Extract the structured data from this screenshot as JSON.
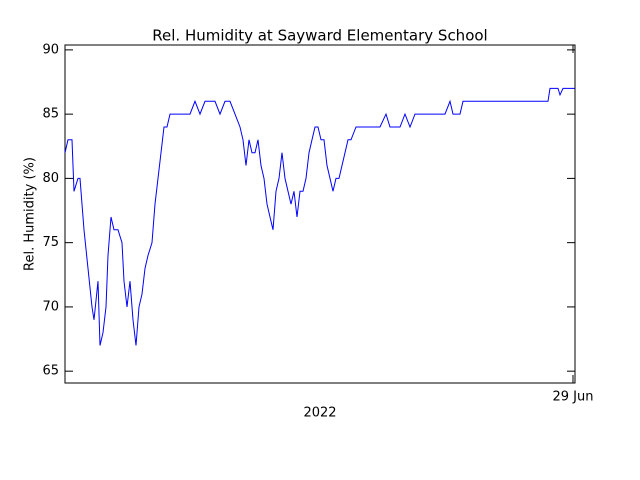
{
  "chart_data": {
    "type": "line",
    "title": "Rel. Humidity at Sayward Elementary School",
    "ylabel": "Rel. Humidity (%)",
    "xlabel": "2022",
    "color": "#0000ff",
    "xlim": [
      0,
      510
    ],
    "xticks": [
      {
        "value": 508,
        "label": "29 Jun"
      }
    ],
    "ylim": [
      64.08,
      90.38
    ],
    "yticks": [
      65,
      70,
      75,
      80,
      85,
      90
    ],
    "x": [
      0,
      3,
      7,
      9,
      13,
      15,
      19,
      23,
      27,
      29,
      33,
      35,
      38,
      41,
      43,
      46,
      49,
      53,
      57,
      59,
      62,
      65,
      68,
      71,
      74,
      77,
      80,
      83,
      87,
      90,
      93,
      96,
      99,
      102,
      105,
      110,
      115,
      125,
      130,
      135,
      140,
      145,
      150,
      155,
      160,
      165,
      170,
      175,
      178,
      181,
      184,
      187,
      190,
      193,
      196,
      199,
      202,
      205,
      208,
      211,
      214,
      217,
      220,
      223,
      226,
      229,
      232,
      235,
      238,
      241,
      244,
      247,
      250,
      253,
      256,
      259,
      262,
      265,
      268,
      271,
      274,
      277,
      280,
      283,
      286,
      291,
      315,
      321,
      325,
      335,
      340,
      345,
      350,
      355,
      380,
      385,
      388,
      395,
      398,
      415,
      483,
      485,
      493,
      495,
      498,
      510
    ],
    "values": [
      82,
      83,
      83,
      79,
      80,
      80,
      76,
      73,
      70,
      69,
      72,
      67,
      68,
      70,
      74,
      77,
      76,
      76,
      75,
      72,
      70,
      72,
      69,
      67,
      70,
      71,
      73,
      74,
      75,
      78,
      80,
      82,
      84,
      84,
      85,
      85,
      85,
      85,
      86,
      85,
      86,
      86,
      86,
      85,
      86,
      86,
      85,
      84,
      83,
      81,
      83,
      82,
      82,
      83,
      81,
      80,
      78,
      77,
      76,
      79,
      80,
      82,
      80,
      79,
      78,
      79,
      77,
      79,
      79,
      80,
      82,
      83,
      84,
      84,
      83,
      83,
      81,
      80,
      79,
      80,
      80,
      81,
      82,
      83,
      83,
      84,
      84,
      85,
      84,
      84,
      85,
      84,
      85,
      85,
      85,
      86,
      85,
      85,
      86,
      86,
      86,
      87,
      87,
      86.5,
      87,
      87
    ]
  }
}
